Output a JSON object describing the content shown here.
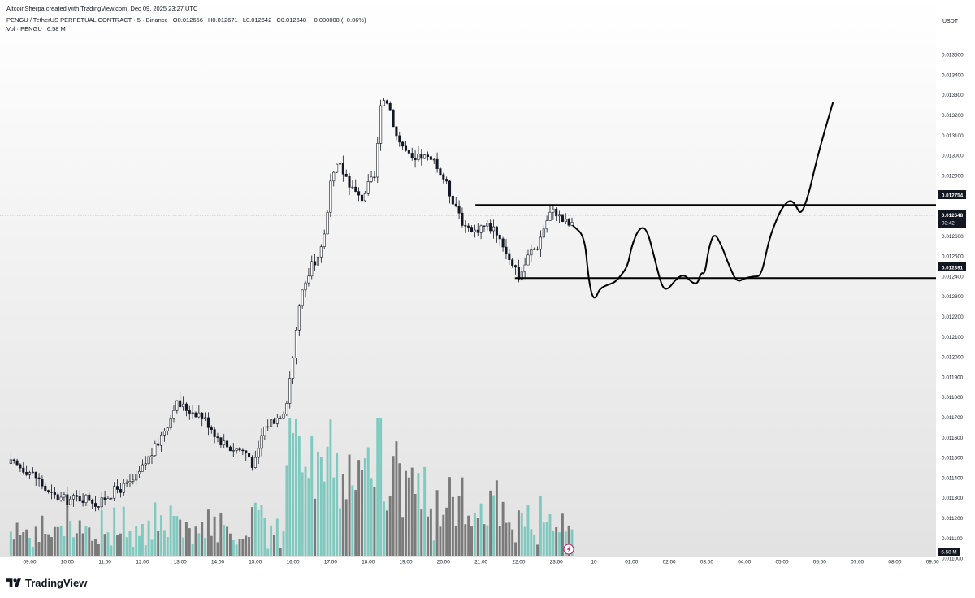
{
  "header": {
    "creator_line": "AltcoinSherpa created with TradingView.com, Dec 09, 2025 23:27 UTC",
    "symbol_line": "PENGU / TetherUS PERPETUAL CONTRACT · 5 · Binance",
    "ohlc": {
      "open_label": "O",
      "open": "0.012656",
      "high_label": "H",
      "high": "0.012671",
      "low_label": "L",
      "low": "0.012642",
      "close_label": "C",
      "close": "0.012648",
      "change": "−0.000008 (−0.06%)"
    },
    "volume_label": "Vol · PENGU",
    "volume_value": "6.58 M"
  },
  "price_axis": {
    "currency": "USDT",
    "ticks": [
      "0.013500",
      "0.013400",
      "0.013300",
      "0.013200",
      "0.013100",
      "0.013000",
      "0.012900",
      "0.012800",
      "0.012700",
      "0.012600",
      "0.012500",
      "0.012400",
      "0.012300",
      "0.012200",
      "0.012100",
      "0.012000",
      "0.011900",
      "0.011800",
      "0.011700",
      "0.011600",
      "0.011500",
      "0.011400",
      "0.011300",
      "0.011200",
      "0.011100",
      "0.011000"
    ],
    "current_price_label": "0.012648",
    "countdown_label": "03:42",
    "resistance_label": "0.012754",
    "support_label": "0.012391",
    "volume_badge": "6.58 M"
  },
  "time_axis": {
    "labels": [
      "09:00",
      "10:00",
      "11:00",
      "12:00",
      "13:00",
      "14:00",
      "15:00",
      "16:00",
      "17:00",
      "18:00",
      "19:00",
      "20:00",
      "21:00",
      "22:00",
      "23:00",
      "10",
      "01:00",
      "02:00",
      "03:00",
      "04:00",
      "05:00",
      "06:00",
      "07:00",
      "08:00",
      "09:00"
    ]
  },
  "branding": {
    "name": "TradingView"
  },
  "colors": {
    "candle_up": "#ffffff",
    "candle_down": "#131722",
    "candle_border": "#131722",
    "volume_up": "#7fc9bf",
    "volume_down": "#7a7a7a",
    "level_line": "#000000",
    "projection": "#000000",
    "background_top": "#ffffff",
    "background_bottom": "#e3e3e3"
  },
  "chart_data": {
    "type": "candlestick",
    "symbol": "PENGU / TetherUS PERPETUAL CONTRACT",
    "interval": "5",
    "exchange": "Binance",
    "ylim": [
      0.01096,
      0.0136
    ],
    "x_range_hours": [
      8.45,
      33.3
    ],
    "close_path": [
      [
        8.5,
        0.01147
      ],
      [
        8.8,
        0.01145
      ],
      [
        9.0,
        0.01143
      ],
      [
        9.2,
        0.0114
      ],
      [
        9.35,
        0.01136
      ],
      [
        9.5,
        0.01132
      ],
      [
        9.75,
        0.0113
      ],
      [
        10.0,
        0.01129
      ],
      [
        10.3,
        0.0113
      ],
      [
        10.6,
        0.0113
      ],
      [
        10.85,
        0.01126
      ],
      [
        11.0,
        0.0113
      ],
      [
        11.3,
        0.01134
      ],
      [
        11.6,
        0.01136
      ],
      [
        11.85,
        0.0114
      ],
      [
        12.1,
        0.01148
      ],
      [
        12.35,
        0.01155
      ],
      [
        12.55,
        0.01163
      ],
      [
        12.75,
        0.0117
      ],
      [
        12.85,
        0.01177
      ],
      [
        13.0,
        0.01176
      ],
      [
        13.2,
        0.01174
      ],
      [
        13.5,
        0.01172
      ],
      [
        13.8,
        0.01166
      ],
      [
        14.0,
        0.0116
      ],
      [
        14.3,
        0.01155
      ],
      [
        14.6,
        0.01154
      ],
      [
        14.8,
        0.01152
      ],
      [
        14.95,
        0.01146
      ],
      [
        15.05,
        0.0115
      ],
      [
        15.2,
        0.01164
      ],
      [
        15.4,
        0.01168
      ],
      [
        15.6,
        0.0117
      ],
      [
        15.8,
        0.01175
      ],
      [
        16.0,
        0.012
      ],
      [
        16.15,
        0.01225
      ],
      [
        16.3,
        0.01236
      ],
      [
        16.5,
        0.01245
      ],
      [
        16.7,
        0.01252
      ],
      [
        16.85,
        0.01262
      ],
      [
        17.0,
        0.01285
      ],
      [
        17.2,
        0.01296
      ],
      [
        17.4,
        0.0129
      ],
      [
        17.6,
        0.01283
      ],
      [
        17.8,
        0.01278
      ],
      [
        18.0,
        0.01285
      ],
      [
        18.2,
        0.0129
      ],
      [
        18.3,
        0.0132
      ],
      [
        18.45,
        0.0133
      ],
      [
        18.6,
        0.01322
      ],
      [
        18.75,
        0.0131
      ],
      [
        19.0,
        0.01302
      ],
      [
        19.2,
        0.01296
      ],
      [
        19.4,
        0.013
      ],
      [
        19.6,
        0.01298
      ],
      [
        19.8,
        0.01295
      ],
      [
        20.0,
        0.01289
      ],
      [
        20.2,
        0.0128
      ],
      [
        20.4,
        0.01273
      ],
      [
        20.6,
        0.01262
      ],
      [
        20.8,
        0.01262
      ],
      [
        21.0,
        0.01265
      ],
      [
        21.2,
        0.01265
      ],
      [
        21.4,
        0.01263
      ],
      [
        21.6,
        0.01255
      ],
      [
        21.8,
        0.01248
      ],
      [
        21.9,
        0.01245
      ],
      [
        22.0,
        0.0124
      ],
      [
        22.1,
        0.01243
      ],
      [
        22.3,
        0.01252
      ],
      [
        22.5,
        0.01255
      ],
      [
        22.7,
        0.01266
      ],
      [
        22.85,
        0.01272
      ],
      [
        23.0,
        0.01272
      ],
      [
        23.15,
        0.01268
      ],
      [
        23.3,
        0.01266
      ],
      [
        23.45,
        0.01265
      ]
    ],
    "series": [
      {
        "name": "Vol · PENGU",
        "last_value": "6.58 M"
      }
    ],
    "levels": [
      {
        "price": 0.012754,
        "from_hour": 20.85,
        "to_hour": 33.3
      },
      {
        "price": 0.012391,
        "from_hour": 21.9,
        "to_hour": 33.3
      }
    ],
    "projection_path": [
      [
        23.45,
        0.01265
      ],
      [
        23.75,
        0.0126
      ],
      [
        23.85,
        0.0124
      ],
      [
        23.95,
        0.0123
      ],
      [
        24.05,
        0.01229
      ],
      [
        24.15,
        0.01234
      ],
      [
        24.4,
        0.01236
      ],
      [
        24.55,
        0.01237
      ],
      [
        24.7,
        0.0124
      ],
      [
        24.9,
        0.01245
      ],
      [
        25.0,
        0.01255
      ],
      [
        25.2,
        0.01264
      ],
      [
        25.4,
        0.01264
      ],
      [
        25.6,
        0.0125
      ],
      [
        25.8,
        0.01235
      ],
      [
        25.95,
        0.01233
      ],
      [
        26.2,
        0.01239
      ],
      [
        26.4,
        0.01241
      ],
      [
        26.6,
        0.01237
      ],
      [
        26.75,
        0.01236
      ],
      [
        26.85,
        0.01242
      ],
      [
        26.95,
        0.01241
      ],
      [
        27.05,
        0.01254
      ],
      [
        27.2,
        0.01262
      ],
      [
        27.4,
        0.01255
      ],
      [
        27.6,
        0.01245
      ],
      [
        27.8,
        0.01237
      ],
      [
        28.0,
        0.01239
      ],
      [
        28.25,
        0.0124
      ],
      [
        28.45,
        0.0124
      ],
      [
        28.65,
        0.01258
      ],
      [
        28.85,
        0.01268
      ],
      [
        29.0,
        0.01274
      ],
      [
        29.2,
        0.01278
      ],
      [
        29.35,
        0.01276
      ],
      [
        29.5,
        0.0127
      ],
      [
        29.7,
        0.0128
      ],
      [
        29.9,
        0.01296
      ],
      [
        30.1,
        0.0131
      ],
      [
        30.35,
        0.01326
      ]
    ]
  }
}
